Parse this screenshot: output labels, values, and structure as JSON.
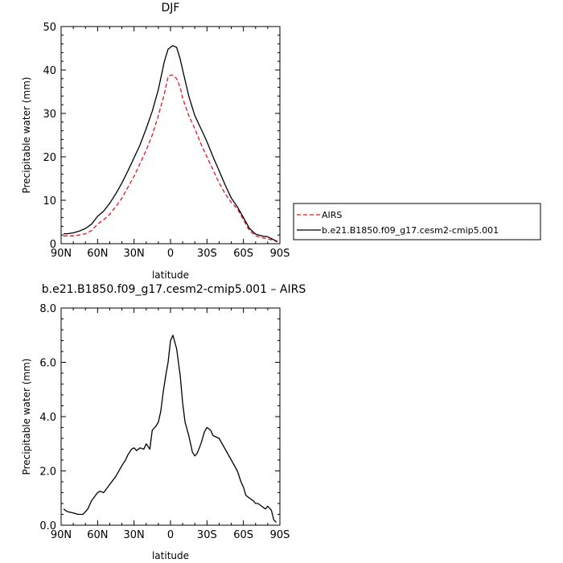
{
  "chart_data": [
    {
      "type": "line",
      "title": "DJF",
      "xlabel": "latitude",
      "ylabel": "Precipitable water (mm)",
      "xlim": [
        90,
        -90
      ],
      "ylim": [
        0,
        50
      ],
      "xticks": [
        90,
        60,
        30,
        0,
        -30,
        -60,
        -90
      ],
      "xtick_labels": [
        "90N",
        "60N",
        "30N",
        "0",
        "30S",
        "60S",
        "90S"
      ],
      "yticks": [
        0,
        10,
        20,
        30,
        40,
        50
      ],
      "ytick_labels": [
        "0",
        "10",
        "20",
        "30",
        "40",
        "50"
      ],
      "legend_position": "right",
      "series": [
        {
          "name": "AIRS",
          "color": "#e8141c",
          "dash": "dashed",
          "x": [
            88,
            85,
            80,
            75,
            70,
            65,
            60,
            55,
            50,
            45,
            40,
            35,
            30,
            25,
            20,
            15,
            10,
            5,
            2,
            0,
            -2,
            -5,
            -8,
            -10,
            -15,
            -20,
            -25,
            -30,
            -35,
            -40,
            -45,
            -50,
            -55,
            -60,
            -65,
            -70,
            -75,
            -80,
            -85,
            -88
          ],
          "y": [
            1.8,
            1.8,
            1.8,
            2.0,
            2.3,
            3.0,
            4.5,
            5.5,
            6.8,
            8.5,
            10.5,
            13.0,
            15.5,
            18.5,
            21.5,
            25.0,
            29.5,
            34.5,
            38.5,
            38.8,
            38.8,
            38.0,
            36.0,
            33.5,
            29.5,
            26.5,
            23.0,
            20.0,
            17.0,
            14.0,
            11.5,
            9.5,
            8.0,
            5.5,
            3.0,
            1.8,
            1.4,
            1.1,
            0.8,
            0.4
          ]
        },
        {
          "name": "b.e21.B1850.f09_g17.cesm2-cmip5.001",
          "color": "#000000",
          "dash": "solid",
          "x": [
            88,
            85,
            80,
            75,
            70,
            65,
            60,
            55,
            50,
            45,
            40,
            35,
            30,
            25,
            20,
            15,
            10,
            5,
            2,
            0,
            -2,
            -5,
            -8,
            -10,
            -15,
            -20,
            -25,
            -30,
            -35,
            -40,
            -45,
            -50,
            -55,
            -60,
            -65,
            -70,
            -75,
            -80,
            -85,
            -88
          ],
          "y": [
            2.3,
            2.3,
            2.5,
            2.9,
            3.5,
            4.5,
            6.3,
            7.5,
            9.3,
            11.5,
            14.0,
            16.8,
            19.8,
            22.8,
            26.5,
            30.5,
            35.5,
            42.0,
            44.8,
            45.2,
            45.6,
            45.2,
            42.5,
            40.0,
            34.0,
            29.5,
            26.5,
            23.5,
            20.0,
            16.8,
            13.5,
            10.5,
            8.5,
            6.0,
            3.5,
            2.2,
            1.8,
            1.6,
            0.9,
            0.5
          ]
        }
      ]
    },
    {
      "type": "line",
      "title": "b.e21.B1850.f09_g17.cesm2-cmip5.001 – AIRS",
      "xlabel": "latitude",
      "ylabel": "Precipitable water (mm)",
      "xlim": [
        90,
        -90
      ],
      "ylim": [
        0,
        8
      ],
      "xticks": [
        90,
        60,
        30,
        0,
        -30,
        -60,
        -90
      ],
      "xtick_labels": [
        "90N",
        "60N",
        "30N",
        "0",
        "30S",
        "60S",
        "90S"
      ],
      "yticks": [
        0,
        2,
        4,
        6,
        8
      ],
      "ytick_labels": [
        "0.0",
        "2.0",
        "4.0",
        "6.0",
        "8.0"
      ],
      "series": [
        {
          "color": "#000000",
          "dash": "solid",
          "x": [
            88,
            85,
            80,
            76,
            72,
            68,
            65,
            60,
            58,
            55,
            50,
            45,
            40,
            37,
            35,
            32,
            30,
            28,
            25,
            22,
            20,
            17,
            15,
            12,
            10,
            8,
            6,
            4,
            2,
            0,
            -2,
            -5,
            -8,
            -10,
            -12,
            -15,
            -18,
            -20,
            -22,
            -25,
            -28,
            -30,
            -33,
            -35,
            -40,
            -45,
            -50,
            -55,
            -58,
            -60,
            -62,
            -65,
            -68,
            -70,
            -72,
            -75,
            -78,
            -80,
            -83,
            -85,
            -87
          ],
          "y": [
            0.6,
            0.5,
            0.45,
            0.4,
            0.4,
            0.6,
            0.9,
            1.2,
            1.25,
            1.2,
            1.5,
            1.8,
            2.2,
            2.4,
            2.6,
            2.8,
            2.85,
            2.75,
            2.85,
            2.8,
            3.0,
            2.8,
            3.5,
            3.65,
            3.8,
            4.2,
            4.9,
            5.5,
            6.0,
            6.8,
            7.0,
            6.5,
            5.5,
            4.5,
            3.8,
            3.3,
            2.7,
            2.55,
            2.65,
            3.0,
            3.45,
            3.6,
            3.5,
            3.3,
            3.2,
            2.8,
            2.4,
            2.0,
            1.6,
            1.4,
            1.1,
            1.0,
            0.9,
            0.8,
            0.8,
            0.7,
            0.6,
            0.7,
            0.55,
            0.2,
            0.1
          ]
        }
      ]
    }
  ]
}
